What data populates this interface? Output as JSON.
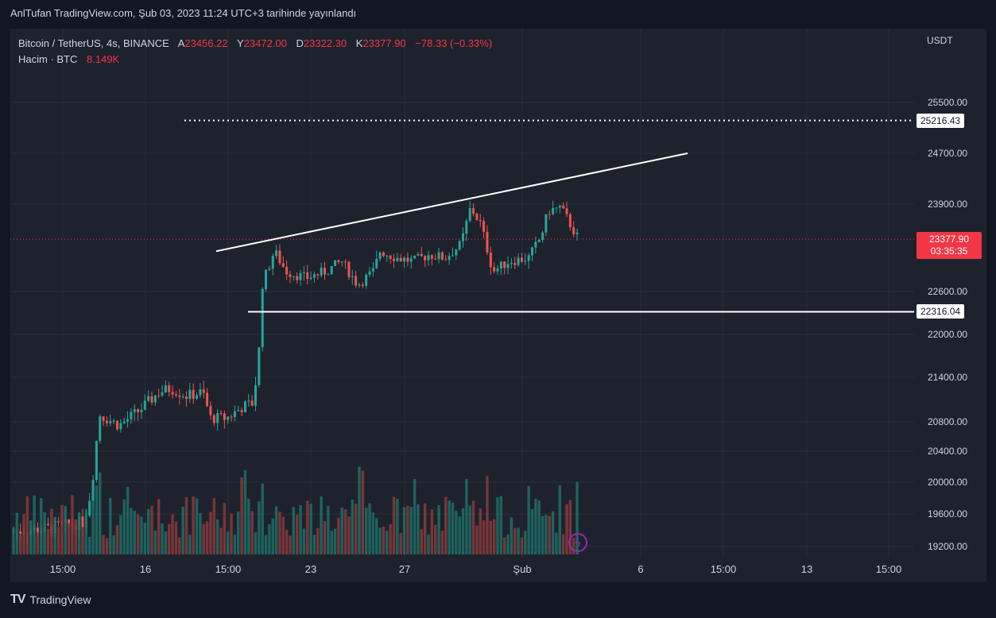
{
  "header": {
    "publish_text": "AnlTufan TradingView.com, Şub 03, 2023 11:24 UTC+3 tarihinde yayınlandı"
  },
  "legend": {
    "symbol": "Bitcoin / TetherUS, 4s, BINANCE",
    "open_label": "A",
    "open": "23456.22",
    "high_label": "Y",
    "high": "23472.00",
    "low_label": "D",
    "low": "23322.30",
    "close_label": "K",
    "close": "23377.90",
    "change": "−78.33 (−0.33%)",
    "volume_label": "Hacim · BTC",
    "volume": "8.149K"
  },
  "footer": {
    "brand": "TradingView",
    "logo": "TV"
  },
  "chart_data": {
    "type": "candlestick",
    "unit": "USDT",
    "y_ticks": [
      "25500.00",
      "24700.00",
      "23900.00",
      "22600.00",
      "22000.00",
      "21400.00",
      "20800.00",
      "20400.00",
      "20000.00",
      "19600.00",
      "19200.00"
    ],
    "x_ticks": [
      "15:00",
      "16",
      "15:00",
      "23",
      "27",
      "Şub",
      "6",
      "15:00",
      "13",
      "15:00"
    ],
    "price_labels": {
      "resistance_level": "25216.43",
      "support_level": "22316.04",
      "last_price": "23377.90",
      "countdown": "03:35:35"
    },
    "colors": {
      "up": "#26a69a",
      "down": "#ef5350",
      "background": "#1e222d",
      "line": "#ffffff"
    }
  }
}
